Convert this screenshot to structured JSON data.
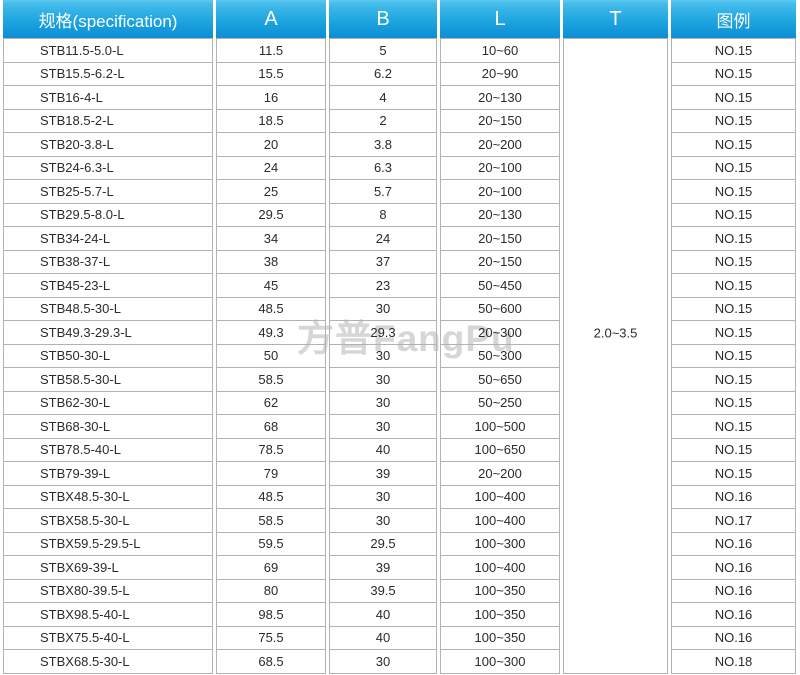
{
  "watermark": {
    "text": "方普FangPu"
  },
  "colors": {
    "header_gradient_top": "#43bceb",
    "header_gradient_bottom": "#0d8ed4",
    "header_text": "#ffffff",
    "cell_border": "#b2b2b2",
    "body_text": "#2b2b2b",
    "watermark_text": "#c9c9c9"
  },
  "table": {
    "headers": {
      "spec": "规格(specification)",
      "a": "A",
      "b": "B",
      "l": "L",
      "t": "T",
      "legend": "图例"
    },
    "t_value": "2.0~3.5",
    "rows": [
      {
        "spec": "STB11.5-5.0-L",
        "a": "11.5",
        "b": "5",
        "l": "10~60",
        "legend": "NO.15"
      },
      {
        "spec": "STB15.5-6.2-L",
        "a": "15.5",
        "b": "6.2",
        "l": "20~90",
        "legend": "NO.15"
      },
      {
        "spec": "STB16-4-L",
        "a": "16",
        "b": "4",
        "l": "20~130",
        "legend": "NO.15"
      },
      {
        "spec": "STB18.5-2-L",
        "a": "18.5",
        "b": "2",
        "l": "20~150",
        "legend": "NO.15"
      },
      {
        "spec": "STB20-3.8-L",
        "a": "20",
        "b": "3.8",
        "l": "20~200",
        "legend": "NO.15"
      },
      {
        "spec": "STB24-6.3-L",
        "a": "24",
        "b": "6.3",
        "l": "20~100",
        "legend": "NO.15"
      },
      {
        "spec": "STB25-5.7-L",
        "a": "25",
        "b": "5.7",
        "l": "20~100",
        "legend": "NO.15"
      },
      {
        "spec": "STB29.5-8.0-L",
        "a": "29.5",
        "b": "8",
        "l": "20~130",
        "legend": "NO.15"
      },
      {
        "spec": "STB34-24-L",
        "a": "34",
        "b": "24",
        "l": "20~150",
        "legend": "NO.15"
      },
      {
        "spec": "STB38-37-L",
        "a": "38",
        "b": "37",
        "l": "20~150",
        "legend": "NO.15"
      },
      {
        "spec": "STB45-23-L",
        "a": "45",
        "b": "23",
        "l": "50~450",
        "legend": "NO.15"
      },
      {
        "spec": "STB48.5-30-L",
        "a": "48.5",
        "b": "30",
        "l": "50~600",
        "legend": "NO.15"
      },
      {
        "spec": "STB49.3-29.3-L",
        "a": "49.3",
        "b": "29.3",
        "l": "20~300",
        "legend": "NO.15"
      },
      {
        "spec": "STB50-30-L",
        "a": "50",
        "b": "30",
        "l": "50~300",
        "legend": "NO.15"
      },
      {
        "spec": "STB58.5-30-L",
        "a": "58.5",
        "b": "30",
        "l": "50~650",
        "legend": "NO.15"
      },
      {
        "spec": "STB62-30-L",
        "a": "62",
        "b": "30",
        "l": "50~250",
        "legend": "NO.15"
      },
      {
        "spec": "STB68-30-L",
        "a": "68",
        "b": "30",
        "l": "100~500",
        "legend": "NO.15"
      },
      {
        "spec": "STB78.5-40-L",
        "a": "78.5",
        "b": "40",
        "l": "100~650",
        "legend": "NO.15"
      },
      {
        "spec": "STB79-39-L",
        "a": "79",
        "b": "39",
        "l": "20~200",
        "legend": "NO.15"
      },
      {
        "spec": "STBX48.5-30-L",
        "a": "48.5",
        "b": "30",
        "l": "100~400",
        "legend": "NO.16"
      },
      {
        "spec": "STBX58.5-30-L",
        "a": "58.5",
        "b": "30",
        "l": "100~400",
        "legend": "NO.17"
      },
      {
        "spec": "STBX59.5-29.5-L",
        "a": "59.5",
        "b": "29.5",
        "l": "100~300",
        "legend": "NO.16"
      },
      {
        "spec": "STBX69-39-L",
        "a": "69",
        "b": "39",
        "l": "100~400",
        "legend": "NO.16"
      },
      {
        "spec": "STBX80-39.5-L",
        "a": "80",
        "b": "39.5",
        "l": "100~350",
        "legend": "NO.16"
      },
      {
        "spec": "STBX98.5-40-L",
        "a": "98.5",
        "b": "40",
        "l": "100~350",
        "legend": "NO.16"
      },
      {
        "spec": "STBX75.5-40-L",
        "a": "75.5",
        "b": "40",
        "l": "100~350",
        "legend": "NO.16"
      },
      {
        "spec": "STBX68.5-30-L",
        "a": "68.5",
        "b": "30",
        "l": "100~300",
        "legend": "NO.18"
      }
    ]
  }
}
